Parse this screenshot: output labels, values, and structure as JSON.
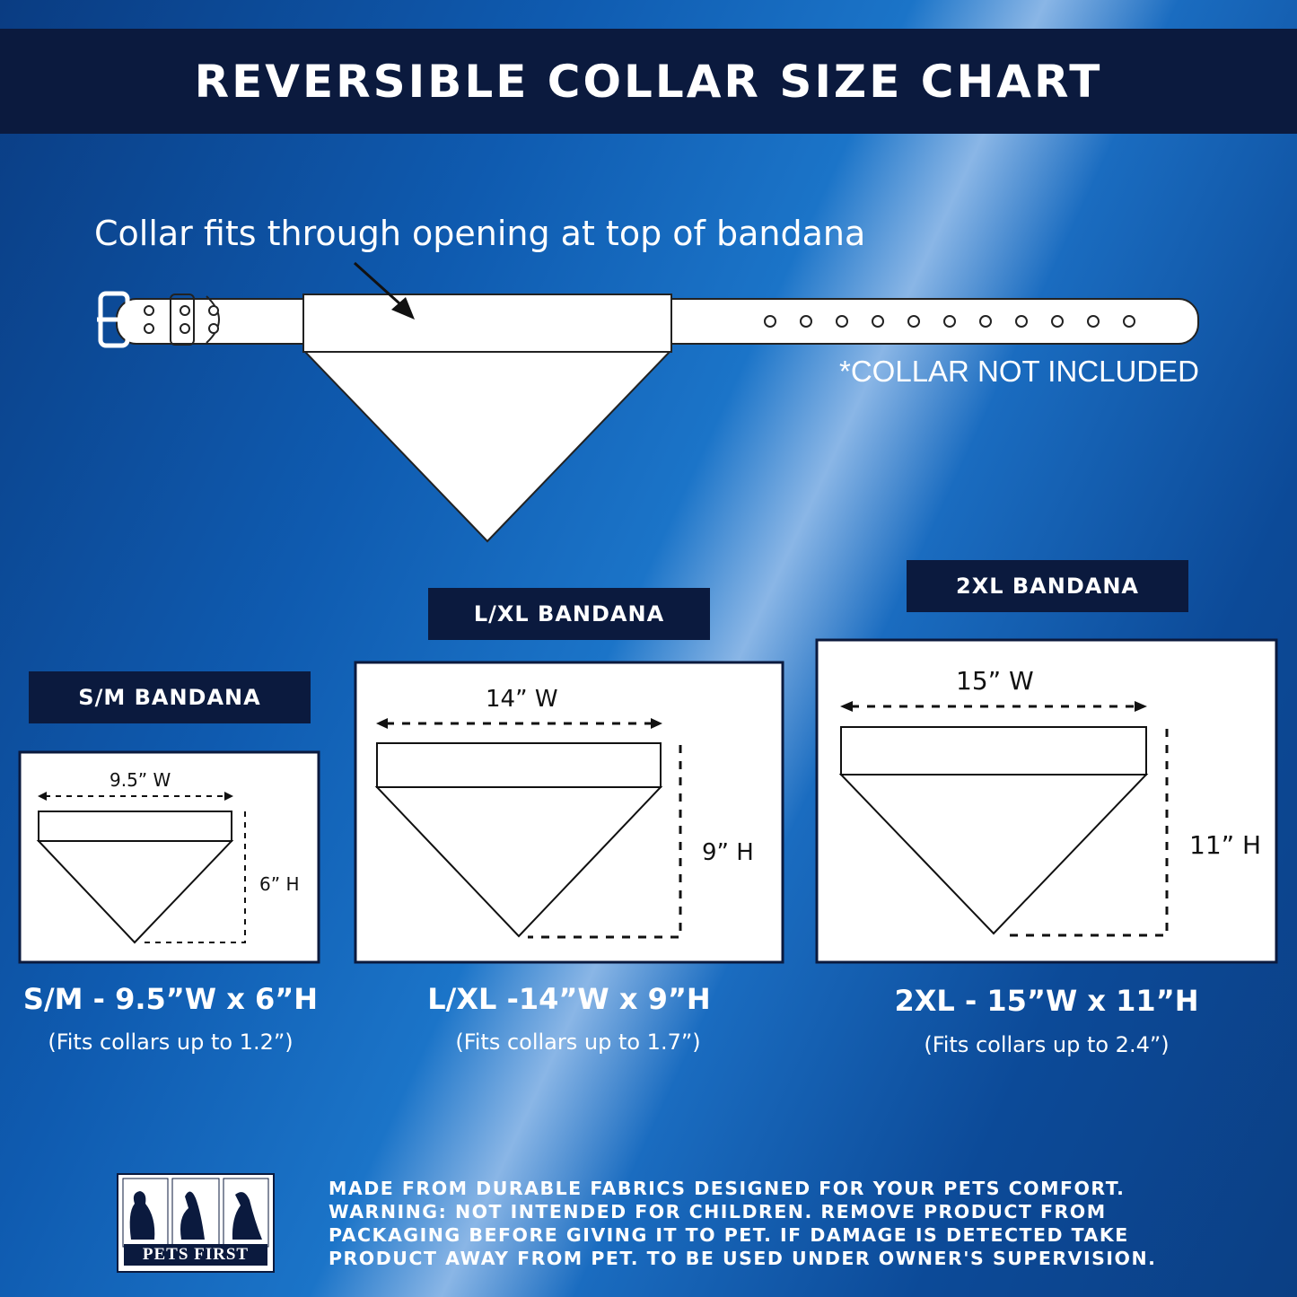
{
  "title": "REVERSIBLE COLLAR SIZE CHART",
  "caption": "Collar fits through opening at top of bandana",
  "collar_note": "*COLLAR NOT INCLUDED",
  "sizes": [
    {
      "label": "S/M BANDANA",
      "width": "9.5” W",
      "height": "6” H",
      "summary": "S/M - 9.5”W x 6”H",
      "fits": "(Fits collars up to 1.2”)"
    },
    {
      "label": "L/XL BANDANA",
      "width": "14” W",
      "height": "9” H",
      "summary": "L/XL -14”W x 9”H",
      "fits": "(Fits collars up to 1.7”)"
    },
    {
      "label": "2XL BANDANA",
      "width": "15” W",
      "height": "11” H",
      "summary": "2XL - 15”W x 11”H",
      "fits": "(Fits collars up to 2.4”)"
    }
  ],
  "footer": {
    "logo_text": "PETS FIRST",
    "lines": [
      "MADE FROM DURABLE FABRICS DESIGNED FOR YOUR PETS COMFORT.",
      "WARNING: NOT INTENDED FOR CHILDREN. REMOVE PRODUCT FROM",
      "PACKAGING BEFORE GIVING IT TO PET. IF DAMAGE IS DETECTED TAKE",
      "PRODUCT AWAY FROM PET. TO BE USED UNDER OWNER'S SUPERVISION."
    ]
  },
  "colors": {
    "navy": "#0b1a3e",
    "background": "#1565c0"
  }
}
